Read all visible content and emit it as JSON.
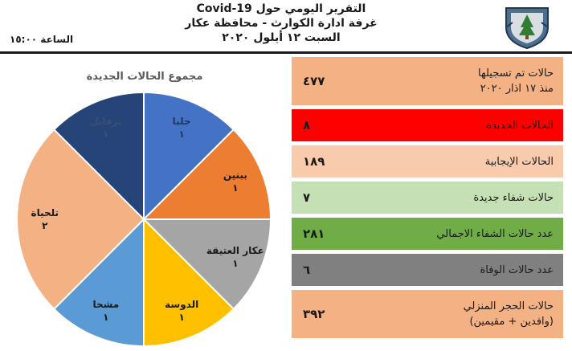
{
  "header": {
    "title_line1": "التقرير اليومي حول Covid-19",
    "title_line2": "غرفة ادارة الكوارث - محافظة عكار",
    "title_line3": "السبت ١٢ أيلول ٢٠٢٠",
    "time": "الساعة ١٥:٠٠",
    "logo_icon": "army-shield-icon"
  },
  "stats": [
    {
      "label_lines": [
        "حالات تم تسجيلها",
        "منذ ١٧ اذار ٢٠٢٠"
      ],
      "value": "٤٧٧",
      "color": "#f4b183"
    },
    {
      "label_lines": [
        "الحالات الجديدة"
      ],
      "value": "٨",
      "color": "#ff0000"
    },
    {
      "label_lines": [
        "الحالات الإيجابية"
      ],
      "value": "١٨٩",
      "color": "#f8cbad"
    },
    {
      "label_lines": [
        "حالات شفاء جديدة"
      ],
      "value": "٧",
      "color": "#c5e0b4"
    },
    {
      "label_lines": [
        "عدد حالات الشفاء الاجمالي"
      ],
      "value": "٢٨١",
      "color": "#70ad47"
    },
    {
      "label_lines": [
        "عدد حالات الوفاة"
      ],
      "value": "٦",
      "color": "#808080"
    },
    {
      "label_lines": [
        "حالات الحجر المنزلي",
        "(وافدين + مقيمين)"
      ],
      "value": "٣٩٢",
      "color": "#f4b183"
    }
  ],
  "chart_data": {
    "type": "pie",
    "title": "مجموع الحالات الجديدة",
    "slices": [
      {
        "label": "حلبا",
        "value": 1,
        "value_text": "١",
        "color": "#4472c4",
        "text_color": "#1f3864"
      },
      {
        "label": "ببنين",
        "value": 1,
        "value_text": "١",
        "color": "#ed7d31",
        "text_color": "#1a1a1a"
      },
      {
        "label": "عكار العتيقة",
        "value": 1,
        "value_text": "١",
        "color": "#a5a5a5",
        "text_color": "#1a1a1a"
      },
      {
        "label": "الدوسة",
        "value": 1,
        "value_text": "١",
        "color": "#ffc000",
        "text_color": "#1a1a1a"
      },
      {
        "label": "مشحا",
        "value": 1,
        "value_text": "١",
        "color": "#5b9bd5",
        "text_color": "#1a1a1a"
      },
      {
        "label": "تلحياة",
        "value": 2,
        "value_text": "٢",
        "color": "#f4b183",
        "text_color": "#1a1a1a"
      },
      {
        "label": "برقايل",
        "value": 1,
        "value_text": "١",
        "color": "#264478",
        "text_color": "#3a4f75"
      }
    ]
  }
}
